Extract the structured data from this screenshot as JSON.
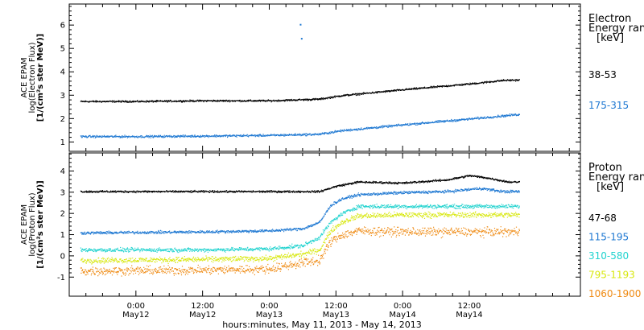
{
  "chart_data": [
    {
      "type": "scatter",
      "panel": "electron",
      "ylabel_lines": [
        "ACE EPAM",
        "log(Electron Flux)",
        "[1/(cm²s ster MeV)]"
      ],
      "ylim": [
        0.6,
        6.9
      ],
      "yticks": [
        1,
        2,
        3,
        4,
        5,
        6
      ],
      "legend": {
        "title_lines": [
          "Electron",
          "Energy ran",
          "[keV]"
        ],
        "entries": [
          {
            "label": "38-53",
            "color": "#000000"
          },
          {
            "label": "175-315",
            "color": "#1e78d2"
          }
        ]
      },
      "series": [
        {
          "name": "38-53",
          "color": "#000000",
          "keypoints": [
            [
              -10,
              2.75
            ],
            [
              0,
              2.75
            ],
            [
              12,
              2.78
            ],
            [
              24,
              2.78
            ],
            [
              33,
              2.85
            ],
            [
              37,
              3.0
            ],
            [
              48,
              3.25
            ],
            [
              60,
              3.5
            ],
            [
              66,
              3.65
            ],
            [
              69,
              3.67
            ]
          ],
          "noise": 0.04
        },
        {
          "name": "175-315",
          "color": "#1e78d2",
          "keypoints": [
            [
              -10,
              1.25
            ],
            [
              0,
              1.25
            ],
            [
              12,
              1.27
            ],
            [
              24,
              1.3
            ],
            [
              33,
              1.35
            ],
            [
              37,
              1.5
            ],
            [
              48,
              1.75
            ],
            [
              60,
              2.0
            ],
            [
              69,
              2.2
            ]
          ],
          "noise": 0.05,
          "outliers": [
            [
              29.5,
              6.05
            ],
            [
              29.7,
              5.45
            ]
          ]
        }
      ]
    },
    {
      "type": "scatter",
      "panel": "proton",
      "ylabel_lines": [
        "ACE EPAM",
        "log(Proton Flux)",
        "[1/(cm²s ster MeV)]"
      ],
      "ylim": [
        -1.9,
        4.85
      ],
      "yticks": [
        -1,
        0,
        1,
        2,
        3,
        4
      ],
      "legend": {
        "title_lines": [
          "Proton",
          "Energy ran",
          "[keV]"
        ],
        "entries": [
          {
            "label": "47-68",
            "color": "#000000"
          },
          {
            "label": "115-195",
            "color": "#1e78d2"
          },
          {
            "label": "310-580",
            "color": "#22d3cf"
          },
          {
            "label": "795-1193",
            "color": "#d8e810"
          },
          {
            "label": "1060-1900",
            "color": "#ef8a12"
          }
        ]
      },
      "series": [
        {
          "name": "47-68",
          "color": "#000000",
          "keypoints": [
            [
              -10,
              3.05
            ],
            [
              24,
              3.05
            ],
            [
              33,
              3.05
            ],
            [
              36,
              3.3
            ],
            [
              40,
              3.5
            ],
            [
              48,
              3.45
            ],
            [
              56,
              3.6
            ],
            [
              60,
              3.8
            ],
            [
              63,
              3.7
            ],
            [
              67,
              3.5
            ],
            [
              69,
              3.5
            ]
          ],
          "noise": 0.05
        },
        {
          "name": "115-195",
          "color": "#1e78d2",
          "keypoints": [
            [
              -10,
              1.1
            ],
            [
              12,
              1.15
            ],
            [
              24,
              1.2
            ],
            [
              30,
              1.3
            ],
            [
              33,
              1.6
            ],
            [
              35,
              2.4
            ],
            [
              37,
              2.7
            ],
            [
              40,
              2.9
            ],
            [
              48,
              3.0
            ],
            [
              56,
              3.05
            ],
            [
              62,
              3.2
            ],
            [
              66,
              3.05
            ],
            [
              69,
              3.05
            ]
          ],
          "noise": 0.07
        },
        {
          "name": "310-580",
          "color": "#22d3cf",
          "keypoints": [
            [
              -10,
              0.3
            ],
            [
              12,
              0.3
            ],
            [
              24,
              0.35
            ],
            [
              30,
              0.5
            ],
            [
              33,
              0.9
            ],
            [
              35,
              1.6
            ],
            [
              37,
              2.0
            ],
            [
              40,
              2.35
            ],
            [
              48,
              2.35
            ],
            [
              56,
              2.35
            ],
            [
              69,
              2.35
            ]
          ],
          "noise": 0.1
        },
        {
          "name": "795-1193",
          "color": "#d8e810",
          "keypoints": [
            [
              -10,
              -0.2
            ],
            [
              12,
              -0.15
            ],
            [
              24,
              -0.1
            ],
            [
              30,
              0.1
            ],
            [
              33,
              0.3
            ],
            [
              35,
              1.2
            ],
            [
              37,
              1.6
            ],
            [
              40,
              1.9
            ],
            [
              48,
              1.95
            ],
            [
              56,
              1.95
            ],
            [
              69,
              1.95
            ]
          ],
          "noise": 0.14
        },
        {
          "name": "1060-1900",
          "color": "#ef8a12",
          "keypoints": [
            [
              -10,
              -0.7
            ],
            [
              12,
              -0.65
            ],
            [
              24,
              -0.6
            ],
            [
              30,
              -0.3
            ],
            [
              33,
              -0.2
            ],
            [
              35,
              0.7
            ],
            [
              37,
              1.0
            ],
            [
              40,
              1.2
            ],
            [
              48,
              1.15
            ],
            [
              56,
              1.15
            ],
            [
              69,
              1.15
            ]
          ],
          "noise": 0.22
        }
      ]
    }
  ],
  "x_axis": {
    "range_hours": [
      -12,
      80
    ],
    "ticks": [
      {
        "x": 0,
        "line1": "0:00",
        "line2": "May12"
      },
      {
        "x": 12,
        "line1": "12:00",
        "line2": "May12"
      },
      {
        "x": 24,
        "line1": "0:00",
        "line2": "May13"
      },
      {
        "x": 36,
        "line1": "12:00",
        "line2": "May13"
      },
      {
        "x": 48,
        "line1": "0:00",
        "line2": "May14"
      },
      {
        "x": 60,
        "line1": "12:00",
        "line2": "May14"
      }
    ],
    "label": "hours:minutes, May 11, 2013 - May 14, 2013"
  }
}
